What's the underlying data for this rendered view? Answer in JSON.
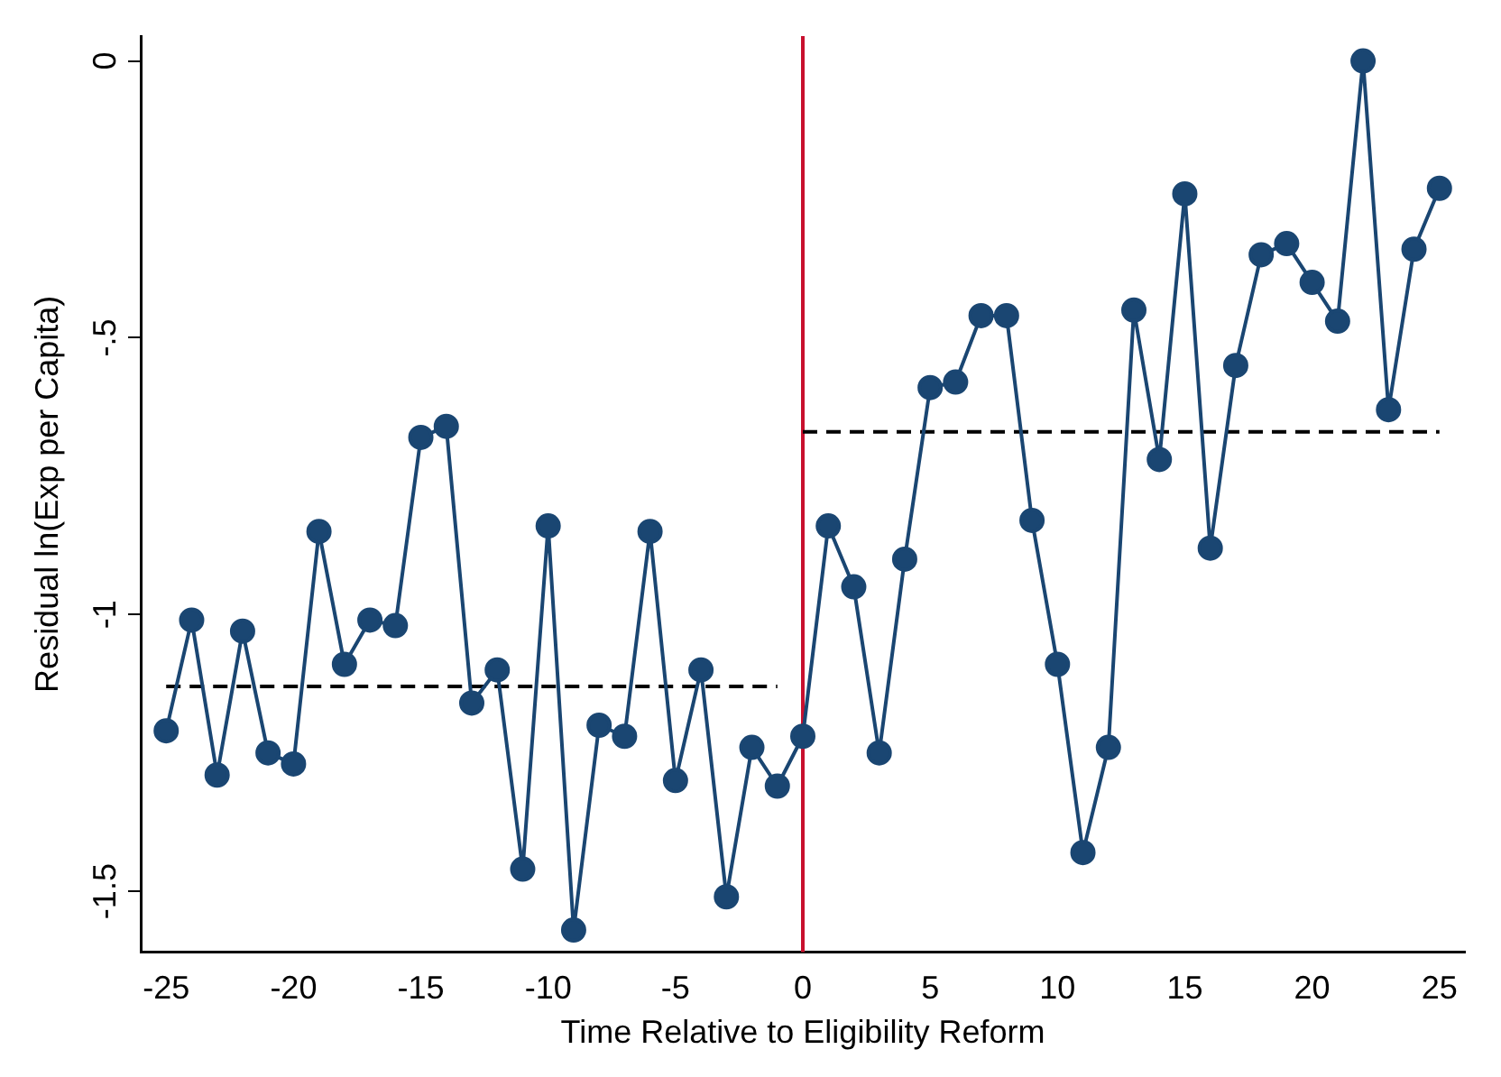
{
  "chart_data": {
    "type": "line",
    "xlabel": "Time Relative to Eligibility Reform",
    "ylabel": "Residual ln(Exp per Capita)",
    "xlim": [
      -26,
      26
    ],
    "xticks": [
      -25,
      -20,
      -15,
      -10,
      -5,
      0,
      5,
      10,
      15,
      20,
      25
    ],
    "ylim": [
      -1.61,
      0.045
    ],
    "yticks": [
      {
        "value": 0,
        "label": "0"
      },
      {
        "value": -0.5,
        "label": "-.5"
      },
      {
        "value": -1,
        "label": "-1"
      },
      {
        "value": -1.5,
        "label": "-1.5"
      }
    ],
    "grid": false,
    "legend": false,
    "series": [
      {
        "color": "#1a4672",
        "marker": "circle",
        "line_style": "solid",
        "x": [
          -25,
          -24,
          -23,
          -22,
          -21,
          -20,
          -19,
          -18,
          -17,
          -16,
          -15,
          -14,
          -13,
          -12,
          -11,
          -10,
          -9,
          -8,
          -7,
          -6,
          -5,
          -4,
          -3,
          -2,
          -1,
          0,
          1,
          2,
          3,
          4,
          5,
          6,
          7,
          8,
          9,
          10,
          11,
          12,
          13,
          14,
          15,
          16,
          17,
          18,
          19,
          20,
          21,
          22,
          23,
          24,
          25
        ],
        "values": [
          -1.21,
          -1.01,
          -1.29,
          -1.03,
          -1.25,
          -1.27,
          -0.85,
          -1.09,
          -1.01,
          -1.02,
          -0.68,
          -0.66,
          -1.16,
          -1.1,
          -1.46,
          -0.84,
          -1.57,
          -1.2,
          -1.22,
          -0.85,
          -1.3,
          -1.1,
          -1.51,
          -1.24,
          -1.31,
          -1.22,
          -0.84,
          -0.95,
          -1.25,
          -0.9,
          -0.59,
          -0.58,
          -0.46,
          -0.46,
          -0.83,
          -1.09,
          -1.43,
          -1.24,
          -0.45,
          -0.72,
          -0.24,
          -0.88,
          -0.55,
          -0.35,
          -0.33,
          -0.4,
          -0.47,
          0,
          -0.63,
          -0.34,
          -0.23
        ]
      },
      {
        "color": "#000000",
        "marker": "none",
        "line_style": "dashed",
        "x": [
          -25,
          -1
        ],
        "values": [
          -1.13,
          -1.13
        ]
      },
      {
        "color": "#000000",
        "marker": "none",
        "line_style": "dashed",
        "x": [
          0,
          25
        ],
        "values": [
          -0.67,
          -0.67
        ]
      }
    ],
    "ref_lines": [
      {
        "axis": "x",
        "value": 0,
        "color": "#c8102e",
        "line_style": "solid"
      }
    ]
  }
}
